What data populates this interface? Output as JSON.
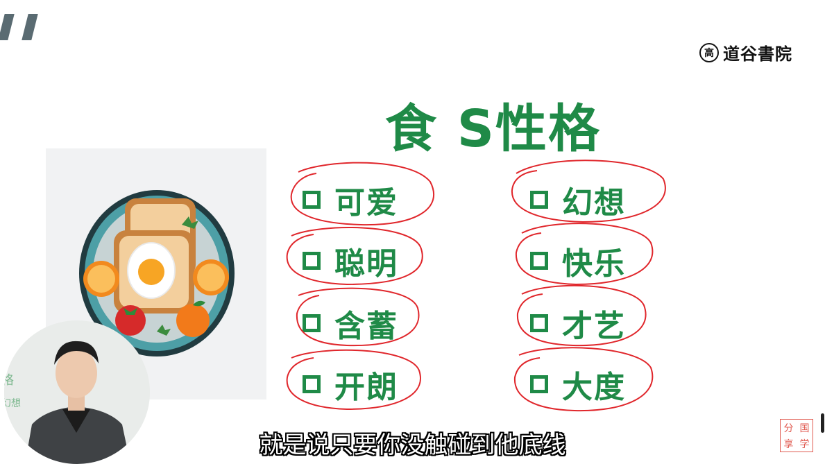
{
  "brand": {
    "seal_char": "高",
    "name": "道谷書院"
  },
  "slide": {
    "title": "食 S性格",
    "left_items": [
      {
        "label": "可爱"
      },
      {
        "label": "聪明"
      },
      {
        "label": "含蓄"
      },
      {
        "label": "开朗"
      }
    ],
    "right_items": [
      {
        "label": "幻想"
      },
      {
        "label": "快乐"
      },
      {
        "label": "才艺"
      },
      {
        "label": "大度"
      }
    ]
  },
  "presenter": {
    "board_text_1": "格",
    "board_text_2": "幻想"
  },
  "subtitle": "就是说只要你没触碰到他底线",
  "stamp": {
    "c1": "分",
    "c2": "国",
    "c3": "享",
    "c4": "学"
  },
  "colors": {
    "accent": "#1f8a47",
    "annotation": "#e0262b",
    "stamp": "#e05a50"
  },
  "icons": [
    "checkbox-icon",
    "food-plate-illustration",
    "logo-seal-icon"
  ]
}
